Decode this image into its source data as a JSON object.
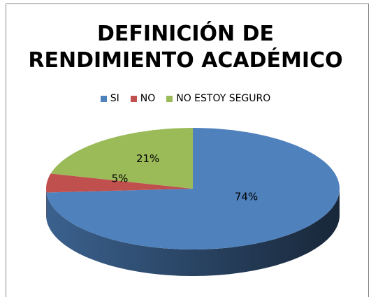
{
  "chart_data": {
    "type": "pie",
    "title": "DEFINICIÓN DE RENDIMIENTO ACADÉMICO",
    "categories": [
      "SI",
      "NO",
      "NO ESTOY SEGURO"
    ],
    "values": [
      74,
      5,
      21
    ],
    "value_labels": [
      "74%",
      "5%",
      "21%"
    ],
    "colors": [
      "#4f81bd",
      "#c0504d",
      "#9bbb59"
    ],
    "legend": "top"
  }
}
